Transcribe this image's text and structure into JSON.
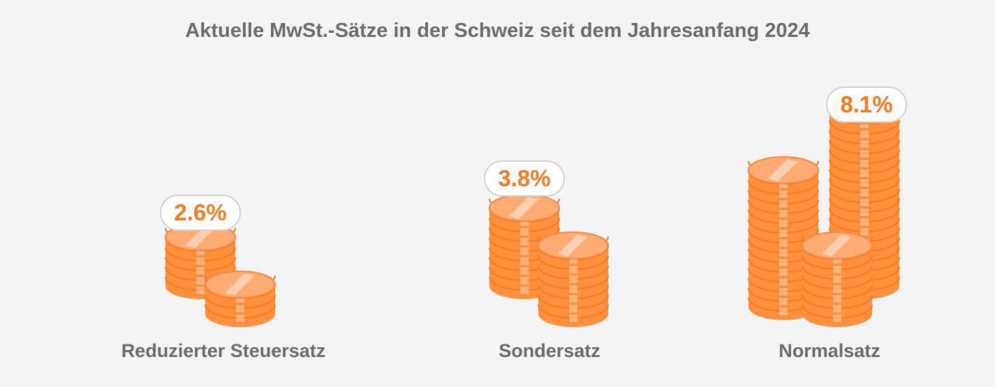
{
  "chart_data": {
    "type": "bar",
    "title": "Aktuelle MwSt.-Sätze in der Schweiz seit dem Jahresanfang 2024",
    "categories": [
      "Reduzierter Steuersatz",
      "Sondersatz",
      "Normalsatz"
    ],
    "values": [
      2.6,
      3.8,
      8.1
    ],
    "value_labels": [
      "2.6%",
      "3.8%",
      "8.1%"
    ],
    "unit": "%",
    "colors": {
      "coin_body": "#ff8f3a",
      "coin_top": "#ffab73",
      "coin_stripe": "#ffd2b5",
      "label_value": "#f47b20",
      "label_text": "#6b6b6b"
    }
  }
}
